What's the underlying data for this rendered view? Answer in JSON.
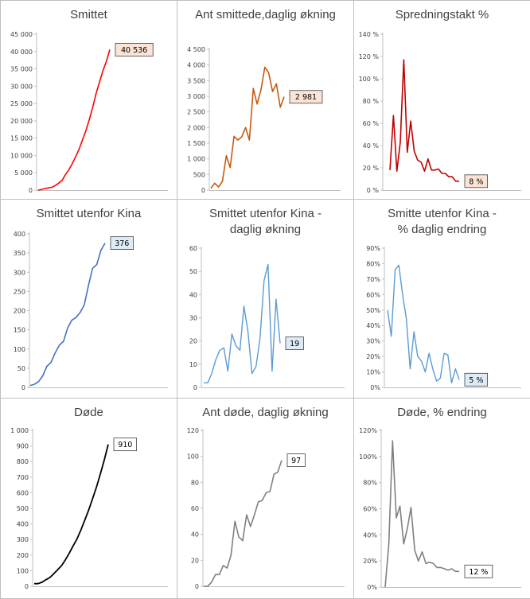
{
  "chart_data": [
    {
      "id": "smittet",
      "type": "line",
      "title": "Smittet",
      "color": "#ff0000",
      "label_bg": "#fbe4d5",
      "ylim": [
        0,
        45000
      ],
      "yticks": [
        0,
        5000,
        10000,
        15000,
        20000,
        25000,
        30000,
        35000,
        40000,
        45000
      ],
      "ytick_labels": [
        "0",
        "5 000",
        "10 000",
        "15 000",
        "20 000",
        "25 000",
        "30 000",
        "35 000",
        "40 000",
        "45 000"
      ],
      "values": [
        0,
        200,
        450,
        650,
        800,
        1300,
        2000,
        2800,
        4500,
        5900,
        7700,
        9700,
        11800,
        14500,
        17200,
        20400,
        24000,
        28000,
        31200,
        34500,
        37200,
        40536
      ],
      "last_label": "40 536"
    },
    {
      "id": "smittede-daglig",
      "type": "line",
      "title": "Ant smittede,daglig økning",
      "color": "#c55a11",
      "label_bg": "#fbe4d5",
      "ylim": [
        0,
        4500
      ],
      "yticks": [
        0,
        500,
        1000,
        1500,
        2000,
        2500,
        3000,
        3500,
        4000,
        4500
      ],
      "ytick_labels": [
        "0",
        "500",
        "1 000",
        "1 500",
        "2 000",
        "2 500",
        "3 000",
        "3 500",
        "4 000",
        "4 500"
      ],
      "values": [
        60,
        220,
        100,
        280,
        1100,
        720,
        1720,
        1600,
        1700,
        2000,
        1600,
        3250,
        2750,
        3200,
        3930,
        3750,
        3150,
        3400,
        2650,
        2981
      ],
      "last_label": "2 981"
    },
    {
      "id": "spredningstakt",
      "type": "line",
      "title": "Spredningstakt %",
      "color": "#c00000",
      "label_bg": "#fbe4d5",
      "ylim": [
        0,
        140
      ],
      "yticks": [
        0,
        20,
        40,
        60,
        80,
        100,
        120,
        140
      ],
      "ytick_labels": [
        "0 %",
        "20 %",
        "40 %",
        "60 %",
        "80 %",
        "100 %",
        "120 %",
        "140 %"
      ],
      "values": [
        18,
        67,
        17,
        43,
        117,
        34,
        62,
        35,
        27,
        25,
        17,
        28,
        18,
        18,
        19,
        15,
        15,
        12,
        12,
        8,
        8
      ],
      "last_label": "8 %"
    },
    {
      "id": "utenfor-kina",
      "type": "line",
      "title": "Smittet utenfor Kina",
      "color": "#4472c4",
      "label_bg": "#deebf7",
      "ylim": [
        0,
        400
      ],
      "yticks": [
        0,
        50,
        100,
        150,
        200,
        250,
        300,
        350,
        400
      ],
      "ytick_labels": [
        "0",
        "50",
        "100",
        "150",
        "200",
        "250",
        "300",
        "350",
        "400"
      ],
      "values": [
        5,
        8,
        15,
        30,
        55,
        65,
        90,
        110,
        120,
        155,
        175,
        182,
        195,
        215,
        265,
        310,
        320,
        357,
        376
      ],
      "last_label": "376"
    },
    {
      "id": "utenfor-kina-daglig",
      "type": "line",
      "title": "Smittet utenfor Kina -\ndaglig økning",
      "color": "#5b9bd5",
      "label_bg": "#deebf7",
      "ylim": [
        0,
        60
      ],
      "yticks": [
        0,
        10,
        20,
        30,
        40,
        50,
        60
      ],
      "ytick_labels": [
        "0",
        "10",
        "20",
        "30",
        "40",
        "50",
        "60"
      ],
      "values": [
        2,
        2,
        6,
        12,
        16,
        17,
        7,
        23,
        18,
        16,
        35,
        24,
        6,
        9,
        21,
        46,
        53,
        7,
        38,
        19
      ],
      "last_label": "19"
    },
    {
      "id": "utenfor-kina-endring",
      "type": "line",
      "title": "Smitte utenfor Kina -\n% daglig endring",
      "color": "#5b9bd5",
      "label_bg": "#deebf7",
      "ylim": [
        0,
        90
      ],
      "yticks": [
        0,
        10,
        20,
        30,
        40,
        50,
        60,
        70,
        80,
        90
      ],
      "ytick_labels": [
        "0%",
        "10%",
        "20%",
        "30%",
        "40%",
        "50%",
        "60%",
        "70%",
        "80%",
        "90%"
      ],
      "values": [
        50,
        33,
        76,
        79,
        60,
        44,
        12,
        36,
        20,
        17,
        10,
        22,
        12,
        4,
        6,
        22,
        21,
        3,
        12,
        5
      ],
      "last_label": "5 %"
    },
    {
      "id": "dode",
      "type": "line",
      "title": "Døde",
      "color": "#000000",
      "label_bg": "#ffffff",
      "ylim": [
        0,
        1000
      ],
      "yticks": [
        0,
        100,
        200,
        300,
        400,
        500,
        600,
        700,
        800,
        900,
        1000
      ],
      "ytick_labels": [
        "0",
        "100",
        "200",
        "300",
        "400",
        "500",
        "600",
        "700",
        "800",
        "900",
        "1 000"
      ],
      "values": [
        17,
        17,
        26,
        42,
        56,
        80,
        106,
        132,
        170,
        213,
        259,
        304,
        361,
        425,
        490,
        563,
        637,
        722,
        811,
        910
      ],
      "last_label": "910"
    },
    {
      "id": "dode-daglig",
      "type": "line",
      "title": "Ant døde, daglig økning",
      "color": "#808080",
      "label_bg": "#ffffff",
      "ylim": [
        0,
        120
      ],
      "yticks": [
        0,
        20,
        40,
        60,
        80,
        100,
        120
      ],
      "ytick_labels": [
        "0",
        "20",
        "40",
        "60",
        "80",
        "100",
        "120"
      ],
      "values": [
        0,
        0,
        3,
        9,
        9,
        16,
        14,
        24,
        50,
        38,
        35,
        55,
        46,
        55,
        65,
        66,
        72,
        73,
        86,
        88,
        97
      ],
      "last_label": "97"
    },
    {
      "id": "dode-endring",
      "type": "line",
      "title": "Døde, % endring",
      "color": "#808080",
      "label_bg": "#ffffff",
      "ylim": [
        0,
        120
      ],
      "yticks": [
        0,
        20,
        40,
        60,
        80,
        100,
        120
      ],
      "ytick_labels": [
        "0%",
        "20%",
        "40%",
        "60%",
        "80%",
        "100%",
        "120%"
      ],
      "values": [
        0,
        33,
        112,
        53,
        62,
        33,
        45,
        61,
        28,
        20,
        27,
        18,
        19,
        18,
        15,
        15,
        14,
        13,
        14,
        12,
        12
      ],
      "last_label": "12 %"
    }
  ]
}
